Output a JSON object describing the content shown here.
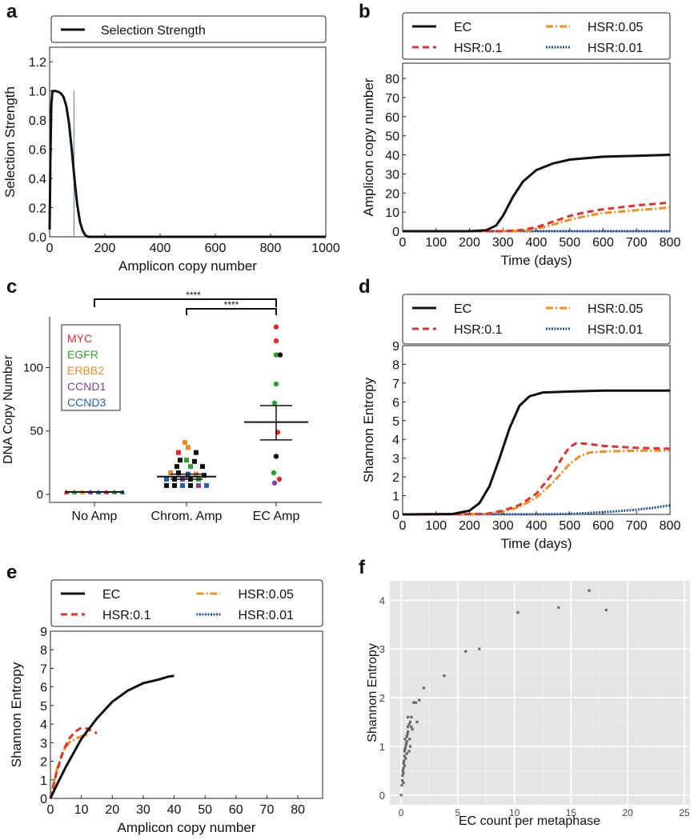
{
  "panels": {
    "a": "a",
    "b": "b",
    "c": "c",
    "d": "d",
    "e": "e",
    "f": "f"
  },
  "colors": {
    "ec": "#111111",
    "hsr01": "#e03030",
    "hsr005": "#f09020",
    "hsr001": "#2050a0",
    "myc": "#e02a2a",
    "egfr": "#2ca02c",
    "erbb2": "#f08a24",
    "ccnd1": "#7b3fa0",
    "ccnd3": "#2060b0",
    "ggplot_bg": "#e5e5e5"
  },
  "chart_data": [
    {
      "id": "a",
      "type": "line",
      "legend": [
        "Selection Strength"
      ],
      "xlabel": "Amplicon copy number",
      "ylabel": "Selection Strength",
      "xlim": [
        0,
        1000
      ],
      "ylim": [
        0,
        1.3
      ],
      "xticks": [
        0,
        200,
        400,
        600,
        800,
        1000
      ],
      "yticks": [
        0.0,
        0.2,
        0.4,
        0.6,
        0.8,
        1.0,
        1.2
      ],
      "series": [
        {
          "name": "Selection Strength",
          "x": [
            0,
            3,
            6,
            10,
            15,
            20,
            30,
            40,
            50,
            60,
            70,
            80,
            90,
            100,
            110,
            120,
            130,
            140,
            150,
            200,
            400,
            600,
            800,
            1000
          ],
          "y": [
            0.05,
            0.55,
            0.9,
            1.0,
            1.0,
            1.0,
            0.995,
            0.985,
            0.96,
            0.9,
            0.78,
            0.6,
            0.4,
            0.22,
            0.1,
            0.04,
            0.01,
            0.0,
            0.0,
            0.0,
            0.0,
            0.0,
            0.0,
            0.0
          ]
        }
      ],
      "vline": 88
    },
    {
      "id": "b",
      "type": "line",
      "legend": [
        "EC",
        "HSR:0.1",
        "HSR:0.05",
        "HSR:0.01"
      ],
      "xlabel": "Time (days)",
      "ylabel": "Amplicon copy number",
      "xlim": [
        0,
        800
      ],
      "ylim": [
        0,
        88
      ],
      "xticks": [
        0,
        100,
        200,
        300,
        400,
        500,
        600,
        700,
        800
      ],
      "yticks": [
        0,
        10,
        20,
        30,
        40,
        50,
        60,
        70,
        80
      ],
      "series": [
        {
          "name": "EC",
          "x": [
            0,
            200,
            250,
            280,
            300,
            330,
            360,
            400,
            450,
            500,
            600,
            700,
            800
          ],
          "y": [
            0,
            0,
            0.5,
            3,
            8,
            18,
            26,
            32,
            35.5,
            37.5,
            39,
            39.5,
            40
          ]
        },
        {
          "name": "HSR:0.1",
          "x": [
            0,
            300,
            350,
            400,
            450,
            500,
            550,
            600,
            700,
            800
          ],
          "y": [
            0,
            0,
            0.5,
            2,
            5,
            8,
            10,
            11.5,
            13.5,
            15
          ]
        },
        {
          "name": "HSR:0.05",
          "x": [
            0,
            320,
            380,
            420,
            470,
            500,
            550,
            600,
            700,
            800
          ],
          "y": [
            0,
            0,
            0.5,
            2,
            4.5,
            6,
            8,
            9.5,
            11,
            12.5
          ]
        },
        {
          "name": "HSR:0.01",
          "x": [
            0,
            800
          ],
          "y": [
            0,
            0
          ]
        }
      ]
    },
    {
      "id": "c",
      "type": "scatter",
      "legend": [
        "MYC",
        "EGFR",
        "ERBB2",
        "CCND1",
        "CCND3"
      ],
      "ylabel": "DNA Copy Number",
      "categories": [
        "No Amp",
        "Chrom. Amp",
        "EC Amp"
      ],
      "ylim": [
        0,
        140
      ],
      "yticks": [
        0,
        50,
        100
      ],
      "significance": [
        {
          "from": "No Amp",
          "to": "EC Amp",
          "label": "****"
        },
        {
          "from": "Chrom. Amp",
          "to": "EC Amp",
          "label": "****"
        }
      ],
      "groups": [
        {
          "category": "No Amp",
          "mean": 2,
          "sem_low": 2,
          "sem_high": 2,
          "points": [
            [
              -0.35,
              2,
              "myc"
            ],
            [
              -0.25,
              2,
              "egfr"
            ],
            [
              -0.15,
              2,
              "erbb2"
            ],
            [
              -0.05,
              2,
              "ccnd1"
            ],
            [
              0.05,
              2,
              "ccnd3"
            ],
            [
              0.15,
              2,
              "myc"
            ],
            [
              0.25,
              2,
              "egfr"
            ],
            [
              0.35,
              2,
              "ccnd3"
            ]
          ]
        },
        {
          "category": "Chrom. Amp",
          "mean": 14,
          "sem_low": 12,
          "sem_high": 16,
          "points": [
            [
              -0.02,
              41,
              "erbb2"
            ],
            [
              0.02,
              37,
              "erbb2"
            ],
            [
              -0.1,
              33,
              "myc"
            ],
            [
              0.12,
              33,
              "black"
            ],
            [
              -0.08,
              27,
              "black"
            ],
            [
              0.0,
              27,
              "egfr"
            ],
            [
              0.1,
              26,
              "black"
            ],
            [
              -0.12,
              22,
              "black"
            ],
            [
              0.05,
              22,
              "egfr"
            ],
            [
              0.2,
              22,
              "black"
            ],
            [
              -0.2,
              17,
              "erbb2"
            ],
            [
              -0.1,
              17,
              "black"
            ],
            [
              0.02,
              16,
              "ccnd3"
            ],
            [
              0.12,
              16,
              "erbb2"
            ],
            [
              0.22,
              15,
              "black"
            ],
            [
              -0.25,
              12,
              "ccnd3"
            ],
            [
              -0.15,
              12,
              "black"
            ],
            [
              -0.05,
              12,
              "ccnd1"
            ],
            [
              0.05,
              12,
              "black"
            ],
            [
              0.15,
              12,
              "egfr"
            ],
            [
              -0.25,
              7,
              "black"
            ],
            [
              -0.15,
              7,
              "black"
            ],
            [
              -0.05,
              7,
              "ccnd3"
            ],
            [
              0.05,
              7,
              "black"
            ],
            [
              0.15,
              7,
              "ccnd1"
            ],
            [
              0.25,
              7,
              "ccnd3"
            ]
          ]
        },
        {
          "category": "EC Amp",
          "mean": 57,
          "sem_low": 43,
          "sem_high": 70,
          "points": [
            [
              0.0,
              132,
              "myc"
            ],
            [
              0.0,
              121,
              "myc"
            ],
            [
              0.0,
              110,
              "egfr"
            ],
            [
              0.05,
              110,
              "black"
            ],
            [
              0.0,
              87,
              "egfr"
            ],
            [
              -0.02,
              72,
              "egfr"
            ],
            [
              0.02,
              49,
              "myc"
            ],
            [
              0.0,
              30,
              "black"
            ],
            [
              -0.03,
              17,
              "egfr"
            ],
            [
              0.04,
              12,
              "myc"
            ],
            [
              -0.02,
              9,
              "ccnd1"
            ]
          ]
        }
      ]
    },
    {
      "id": "d",
      "type": "line",
      "legend": [
        "EC",
        "HSR:0.1",
        "HSR:0.05",
        "HSR:0.01"
      ],
      "xlabel": "Time (days)",
      "ylabel": "Shannon Entropy",
      "xlim": [
        0,
        800
      ],
      "ylim": [
        0,
        9
      ],
      "xticks": [
        0,
        100,
        200,
        300,
        400,
        500,
        600,
        700,
        800
      ],
      "yticks": [
        0,
        1,
        2,
        3,
        4,
        5,
        6,
        7,
        8,
        9
      ],
      "series": [
        {
          "name": "EC",
          "x": [
            0,
            150,
            200,
            230,
            260,
            290,
            320,
            350,
            380,
            420,
            500,
            600,
            700,
            800
          ],
          "y": [
            0,
            0.02,
            0.2,
            0.6,
            1.5,
            3,
            4.6,
            5.8,
            6.3,
            6.5,
            6.55,
            6.6,
            6.6,
            6.6
          ]
        },
        {
          "name": "HSR:0.1",
          "x": [
            0,
            250,
            300,
            350,
            400,
            450,
            480,
            500,
            520,
            560,
            600,
            700,
            800
          ],
          "y": [
            0,
            0.02,
            0.2,
            0.5,
            1.1,
            2.2,
            3.1,
            3.6,
            3.8,
            3.75,
            3.65,
            3.55,
            3.5
          ]
        },
        {
          "name": "HSR:0.05",
          "x": [
            0,
            250,
            300,
            350,
            400,
            450,
            500,
            530,
            560,
            600,
            700,
            800
          ],
          "y": [
            0,
            0.02,
            0.15,
            0.4,
            0.9,
            1.7,
            2.7,
            3.1,
            3.3,
            3.35,
            3.4,
            3.4
          ]
        },
        {
          "name": "HSR:0.01",
          "x": [
            0,
            450,
            500,
            550,
            600,
            650,
            700,
            750,
            800
          ],
          "y": [
            0,
            0.01,
            0.03,
            0.07,
            0.12,
            0.18,
            0.25,
            0.35,
            0.48
          ]
        }
      ]
    },
    {
      "id": "e",
      "type": "line",
      "legend": [
        "EC",
        "HSR:0.1",
        "HSR:0.05",
        "HSR:0.01"
      ],
      "xlabel": "Amplicon copy number",
      "ylabel": "Shannon Entropy",
      "xlim": [
        0,
        88
      ],
      "ylim": [
        0,
        9
      ],
      "xticks": [
        0,
        10,
        20,
        30,
        40,
        50,
        60,
        70,
        80
      ],
      "yticks": [
        0,
        1,
        2,
        3,
        4,
        5,
        6,
        7,
        8,
        9
      ],
      "series": [
        {
          "name": "EC",
          "x": [
            0,
            2,
            5,
            10,
            15,
            20,
            25,
            30,
            35,
            38,
            40
          ],
          "y": [
            0,
            0.7,
            1.7,
            3.2,
            4.3,
            5.2,
            5.8,
            6.2,
            6.4,
            6.55,
            6.6
          ]
        },
        {
          "name": "HSR:0.1",
          "x": [
            0,
            2,
            4,
            6,
            8,
            10,
            12,
            13,
            14,
            15
          ],
          "y": [
            0,
            1.4,
            2.5,
            3.2,
            3.6,
            3.8,
            3.75,
            3.65,
            3.6,
            3.5
          ]
        },
        {
          "name": "HSR:0.05",
          "x": [
            0,
            2,
            4,
            6,
            8,
            10,
            11,
            12.5
          ],
          "y": [
            0,
            1.5,
            2.5,
            3.0,
            3.2,
            3.35,
            3.4,
            3.4
          ]
        },
        {
          "name": "HSR:0.01",
          "x": [
            0,
            0.5
          ],
          "y": [
            0,
            0.4
          ]
        }
      ]
    },
    {
      "id": "f",
      "type": "scatter",
      "xlabel": "EC count per metaphase",
      "ylabel": "Shannon Entropy",
      "xlim": [
        -1,
        25.5
      ],
      "ylim": [
        -0.2,
        4.4
      ],
      "xticks": [
        0,
        5,
        10,
        15,
        20,
        25
      ],
      "yticks": [
        0,
        1,
        2,
        3,
        4
      ],
      "points": [
        [
          0,
          0
        ],
        [
          0.05,
          0.2
        ],
        [
          0.1,
          0.3
        ],
        [
          0.12,
          0.4
        ],
        [
          0.15,
          0.5
        ],
        [
          0.2,
          0.55
        ],
        [
          0.22,
          0.65
        ],
        [
          0.25,
          0.7
        ],
        [
          0.3,
          0.8
        ],
        [
          0.3,
          0.9
        ],
        [
          0.35,
          0.95
        ],
        [
          0.4,
          1.0
        ],
        [
          0.45,
          1.05
        ],
        [
          0.5,
          1.1
        ],
        [
          0.5,
          1.2
        ],
        [
          0.55,
          1.25
        ],
        [
          0.6,
          1.3
        ],
        [
          0.6,
          1.4
        ],
        [
          0.7,
          1.45
        ],
        [
          0.8,
          1.5
        ],
        [
          0.2,
          0.25
        ],
        [
          0.3,
          0.6
        ],
        [
          0.4,
          0.75
        ],
        [
          0.5,
          0.85
        ],
        [
          0.7,
          0.9
        ],
        [
          0.8,
          1.0
        ],
        [
          0.9,
          1.4
        ],
        [
          1.0,
          1.35
        ],
        [
          1.1,
          1.9
        ],
        [
          1.3,
          1.9
        ],
        [
          1.4,
          1.5
        ],
        [
          1.6,
          1.95
        ],
        [
          2.0,
          2.2
        ],
        [
          3.8,
          2.45
        ],
        [
          5.7,
          2.95
        ],
        [
          6.9,
          3.0
        ],
        [
          10.3,
          3.75
        ],
        [
          13.9,
          3.85
        ],
        [
          16.6,
          4.2
        ],
        [
          18.1,
          3.8
        ],
        [
          0.6,
          1.6
        ],
        [
          0.9,
          1.6
        ],
        [
          0.2,
          0.45
        ],
        [
          0.35,
          1.15
        ],
        [
          0.75,
          1.15
        ]
      ]
    }
  ]
}
